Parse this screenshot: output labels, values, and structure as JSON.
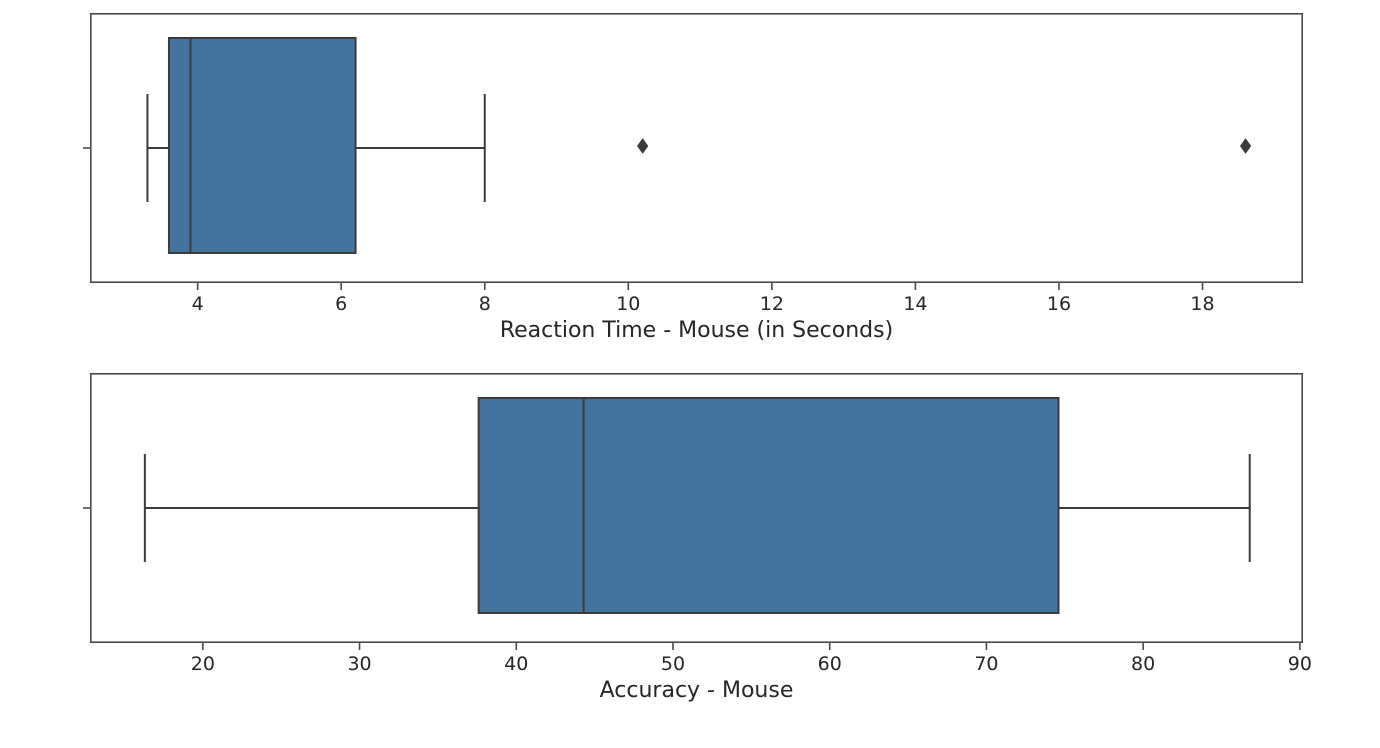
{
  "page": {
    "background": "#ffffff"
  },
  "chart_data": [
    {
      "type": "boxplot",
      "orientation": "horizontal",
      "title": "",
      "xlabel": "Reaction Time - Mouse (in Seconds)",
      "ylabel": "",
      "xlim": [
        2.5,
        19.4
      ],
      "xticks": [
        4,
        6,
        8,
        10,
        12,
        14,
        16,
        18
      ],
      "grid": false,
      "legend": null,
      "box": {
        "whisker_low": 3.3,
        "q1": 3.6,
        "median": 3.9,
        "q3": 6.2,
        "whisker_high": 8.0,
        "outliers": [
          10.2,
          18.6
        ]
      },
      "colors": {
        "box_fill": "#44739e",
        "line": "#3b3b3b",
        "spine": "#4a4a4a",
        "text": "#262626"
      }
    },
    {
      "type": "boxplot",
      "orientation": "horizontal",
      "title": "",
      "xlabel": "Accuracy - Mouse",
      "ylabel": "",
      "xlim": [
        12.8,
        90.2
      ],
      "xticks": [
        20,
        30,
        40,
        50,
        60,
        70,
        80,
        90
      ],
      "grid": false,
      "legend": null,
      "box": {
        "whisker_low": 16.3,
        "q1": 37.6,
        "median": 44.3,
        "q3": 74.6,
        "whisker_high": 86.8,
        "outliers": []
      },
      "colors": {
        "box_fill": "#44739e",
        "line": "#3b3b3b",
        "spine": "#4a4a4a",
        "text": "#262626"
      }
    }
  ]
}
